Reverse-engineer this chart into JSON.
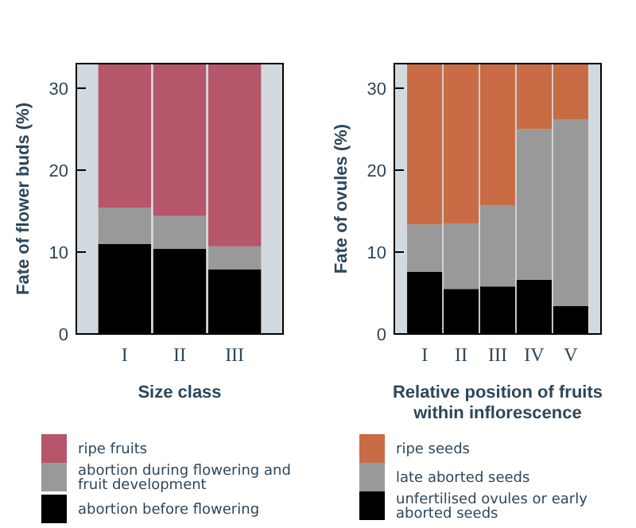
{
  "chart_data": [
    {
      "type": "bar",
      "stacked": true,
      "xlabel": "Size class",
      "ylabel": "Fate of flower buds (%)",
      "categories": [
        "I",
        "II",
        "III"
      ],
      "ylim": [
        0,
        33
      ],
      "yticks": [
        0,
        10,
        20,
        30
      ],
      "legend": "bottom",
      "series": [
        {
          "name": "abortion before flowering",
          "color": "#000000",
          "values": [
            11.0,
            10.4,
            7.9
          ]
        },
        {
          "name": "abortion during flowering and fruit development",
          "color": "#999999",
          "values": [
            4.4,
            4.0,
            2.8
          ]
        },
        {
          "name": "ripe fruits",
          "color": "#b5566a",
          "values": [
            17.6,
            18.6,
            22.3
          ]
        }
      ]
    },
    {
      "type": "bar",
      "stacked": true,
      "xlabel": "Relative position of fruits within inflorescence",
      "ylabel": "Fate of ovules (%)",
      "categories": [
        "I",
        "II",
        "III",
        "IV",
        "V"
      ],
      "ylim": [
        0,
        33
      ],
      "yticks": [
        0,
        10,
        20,
        30
      ],
      "legend": "bottom",
      "series": [
        {
          "name": "unfertilised ovules or early aborted seeds",
          "color": "#000000",
          "values": [
            7.6,
            5.5,
            5.8,
            6.6,
            3.4
          ]
        },
        {
          "name": "late aborted seeds",
          "color": "#999999",
          "values": [
            5.8,
            8.0,
            9.9,
            18.4,
            22.8
          ]
        },
        {
          "name": "ripe seeds",
          "color": "#c96b45",
          "values": [
            19.6,
            19.5,
            17.3,
            8.0,
            6.8
          ]
        }
      ]
    }
  ]
}
